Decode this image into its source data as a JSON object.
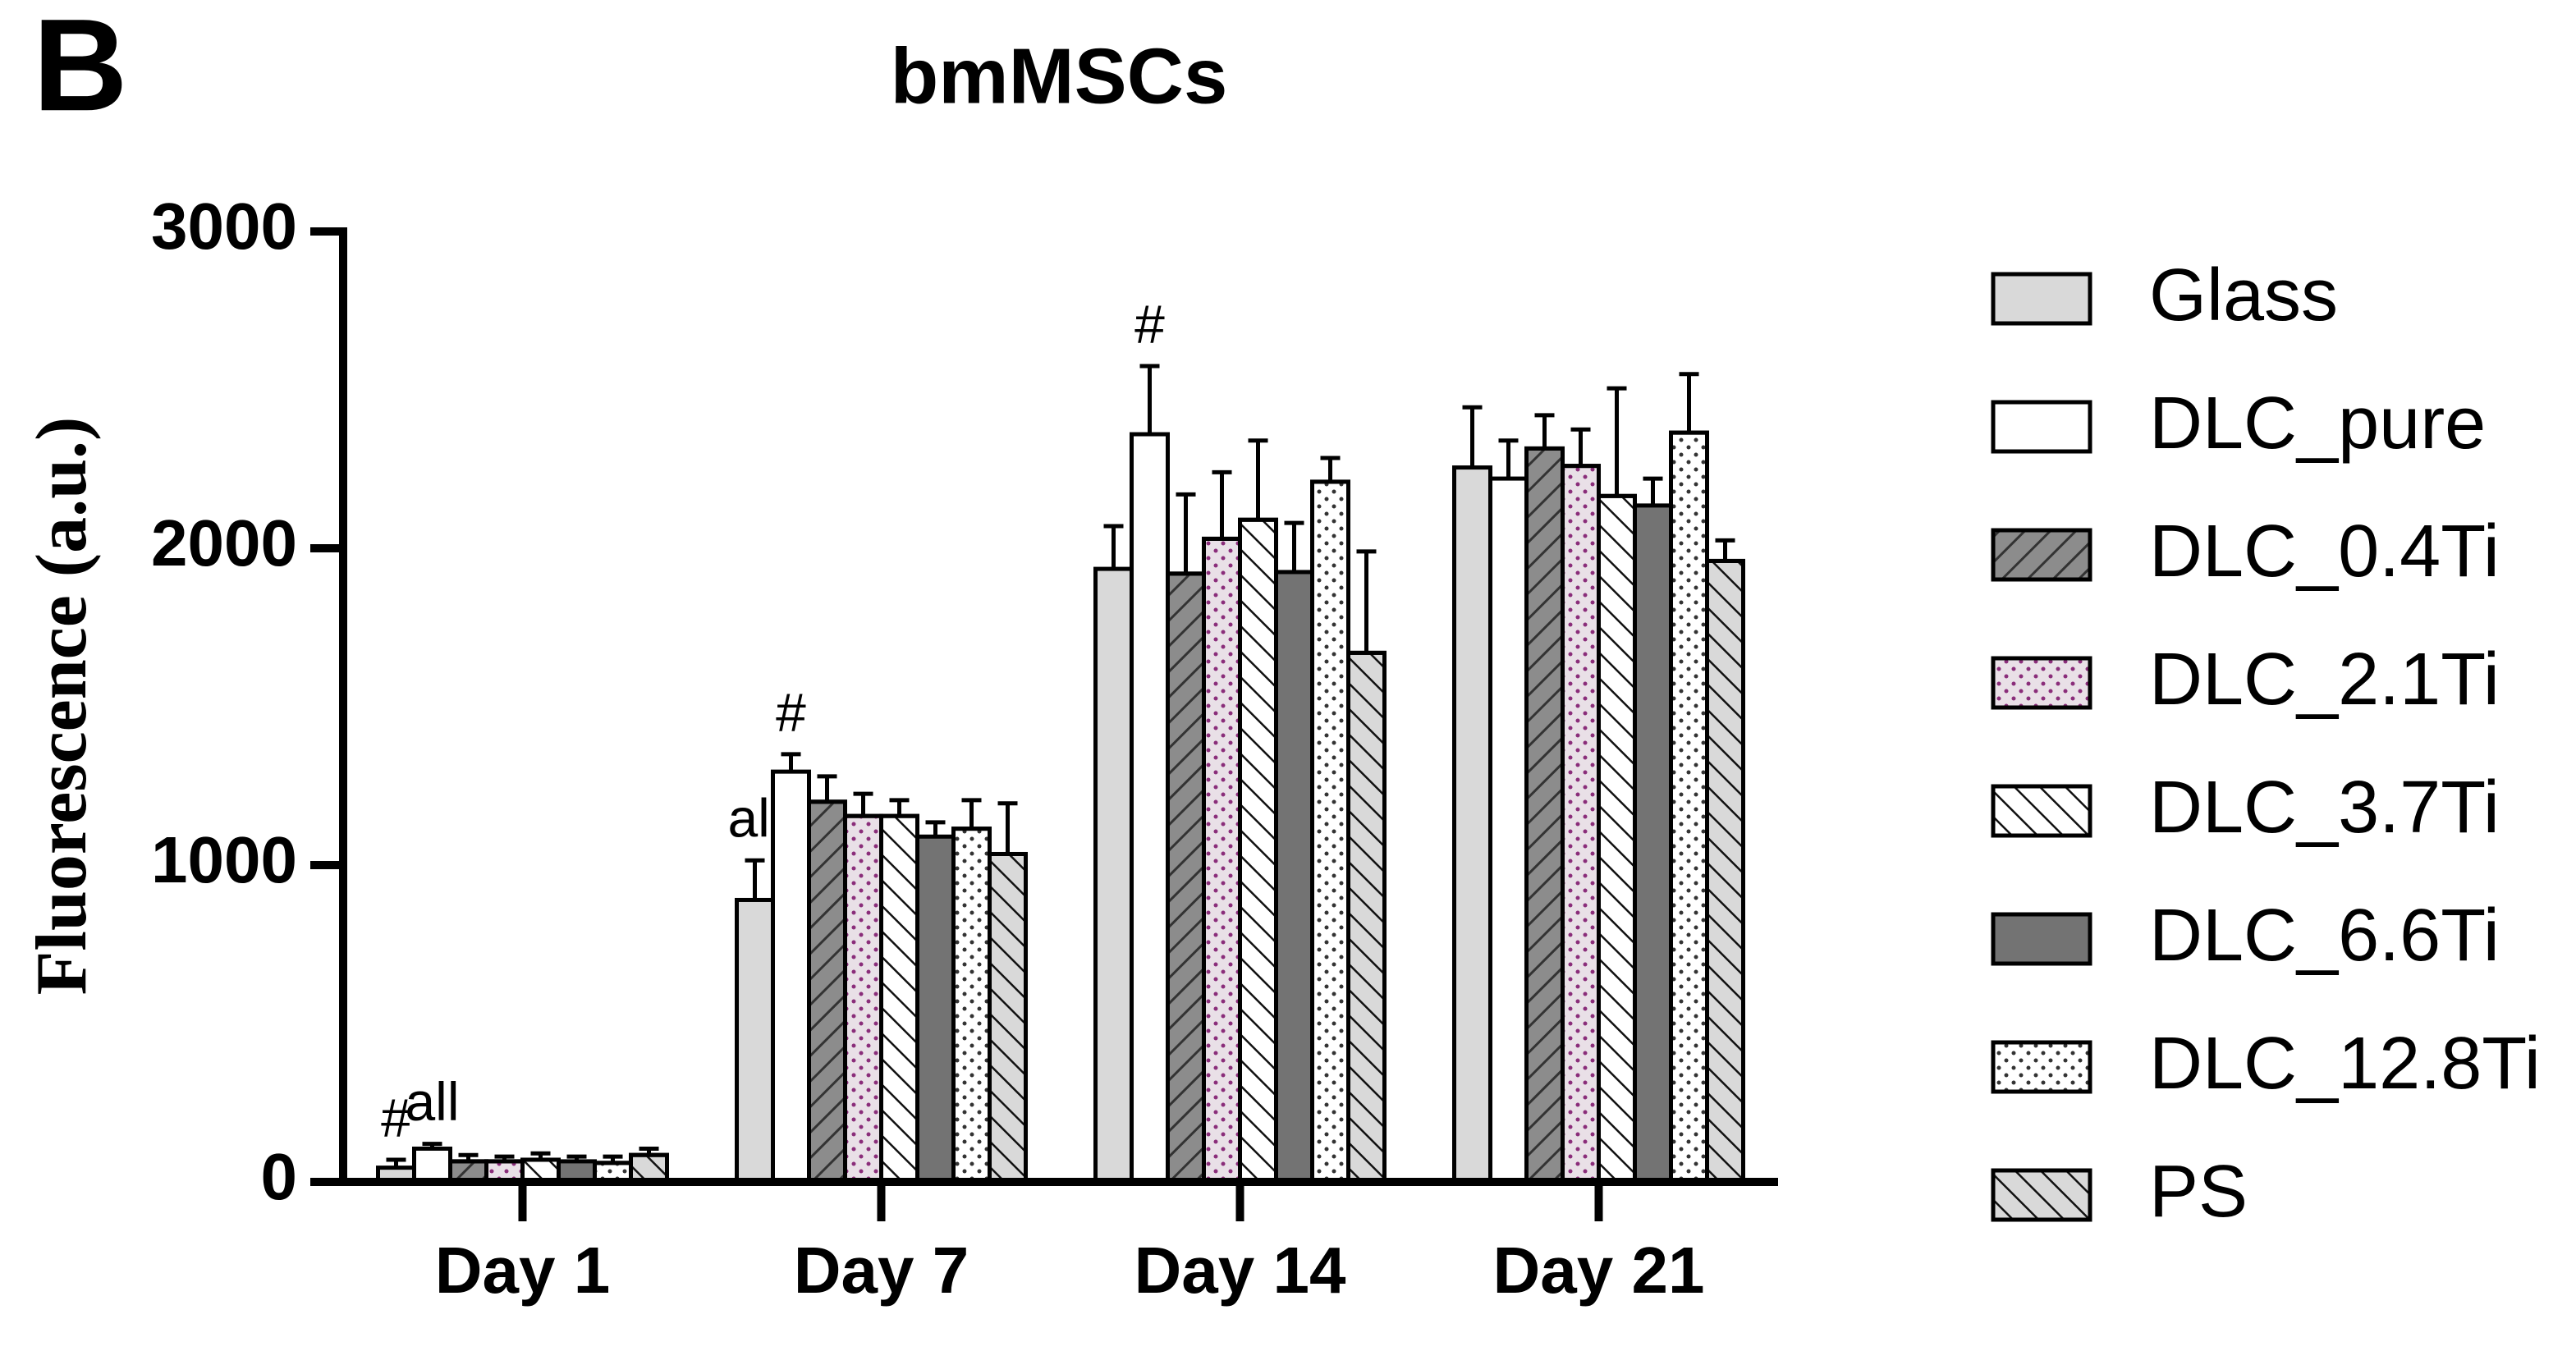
{
  "chart_data": {
    "type": "bar",
    "panel_label": "B",
    "title": "bmMSCs",
    "y_label": "Fluorescence (a.u.)",
    "categories": [
      "Day 1",
      "Day 7",
      "Day 14",
      "Day 21"
    ],
    "ylim": [
      0,
      3000
    ],
    "yticks": [
      0,
      1000,
      2000,
      3000
    ],
    "series": [
      {
        "name": "Glass",
        "color": "#d9d9d9",
        "pattern": "none",
        "values": [
          45,
          890,
          1935,
          2255
        ],
        "errors": [
          25,
          125,
          135,
          190
        ],
        "annotations": [
          "#",
          "all",
          null,
          null
        ]
      },
      {
        "name": "DLC_pure",
        "color": "#ffffff",
        "pattern": "none",
        "values": [
          105,
          1295,
          2360,
          2220
        ],
        "errors": [
          15,
          55,
          215,
          120
        ],
        "annotations": [
          "all",
          "#",
          "#",
          null
        ]
      },
      {
        "name": "DLC_0.4Ti",
        "color": "#8c8c8c",
        "pattern": "forward-hatch",
        "values": [
          65,
          1200,
          1920,
          2315
        ],
        "errors": [
          20,
          80,
          250,
          105
        ]
      },
      {
        "name": "DLC_2.1Ti",
        "color": "#e9e0e7",
        "pattern": "purple-dots",
        "values": [
          65,
          1155,
          2030,
          2260
        ],
        "errors": [
          15,
          70,
          210,
          115
        ]
      },
      {
        "name": "DLC_3.7Ti",
        "color": "#ffffff",
        "pattern": "back-hatch",
        "values": [
          70,
          1155,
          2090,
          2165
        ],
        "errors": [
          20,
          50,
          250,
          340
        ]
      },
      {
        "name": "DLC_6.6Ti",
        "color": "#737373",
        "pattern": "none",
        "values": [
          65,
          1090,
          1925,
          2135
        ],
        "errors": [
          15,
          45,
          155,
          85
        ]
      },
      {
        "name": "DLC_12.8Ti",
        "color": "#ffffff",
        "pattern": "dots",
        "values": [
          60,
          1115,
          2210,
          2365
        ],
        "errors": [
          20,
          90,
          75,
          185
        ]
      },
      {
        "name": "PS",
        "color": "#d9d9d9",
        "pattern": "back-hatch",
        "values": [
          85,
          1035,
          1670,
          1960
        ],
        "errors": [
          20,
          160,
          320,
          65
        ]
      }
    ]
  }
}
